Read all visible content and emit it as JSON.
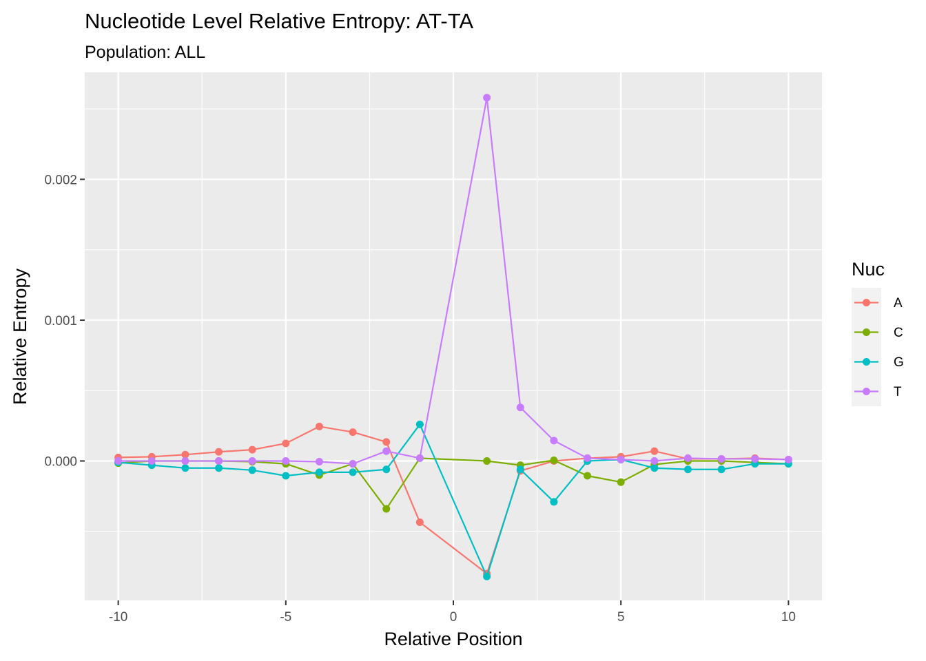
{
  "chart_data": {
    "type": "line",
    "title": "Nucleotide Level Relative Entropy: AT-TA",
    "subtitle": "Population: ALL",
    "xlabel": "Relative Position",
    "ylabel": "Relative Entropy",
    "xlim": [
      -11,
      11
    ],
    "ylim": [
      -0.00099,
      0.00276
    ],
    "x_ticks": [
      -10,
      -5,
      0,
      5,
      10
    ],
    "x_tick_labels": [
      "-10",
      "-5",
      "0",
      "5",
      "10"
    ],
    "x_minor_ticks": [
      -7.5,
      -2.5,
      2.5,
      7.5
    ],
    "y_ticks": [
      0,
      0.001,
      0.002
    ],
    "y_tick_labels": [
      "0.000",
      "0.001",
      "0.002"
    ],
    "y_minor_ticks": [
      -0.0005,
      0.0005,
      0.0015,
      0.0025
    ],
    "grid": true,
    "legend": {
      "title": "Nuc",
      "position": "right"
    },
    "x": [
      -10,
      -9,
      -8,
      -7,
      -6,
      -5,
      -4,
      -3,
      -2,
      -1,
      1,
      2,
      3,
      4,
      5,
      6,
      7,
      8,
      9,
      10
    ],
    "series": [
      {
        "name": "A",
        "color": "#F8766D",
        "values": [
          2.5e-05,
          3e-05,
          4.5e-05,
          6.5e-05,
          8e-05,
          0.000125,
          0.000245,
          0.000205,
          0.000135,
          -0.000435,
          -0.0008,
          -7e-05,
          0.0,
          2e-05,
          3e-05,
          7e-05,
          1.5e-05,
          1.5e-05,
          2e-05,
          1e-05
        ]
      },
      {
        "name": "C",
        "color": "#7CAE00",
        "values": [
          -1.5e-05,
          0.0,
          0.0,
          0.0,
          -5e-06,
          -2e-05,
          -0.0001,
          -2e-05,
          -0.00034,
          2e-05,
          0.0,
          -3e-05,
          5e-06,
          -0.000105,
          -0.00015,
          -2.5e-05,
          0.0,
          0.0,
          -1e-05,
          -2e-05
        ]
      },
      {
        "name": "G",
        "color": "#00BFC4",
        "values": [
          -1e-05,
          -3e-05,
          -5e-05,
          -5e-05,
          -6.5e-05,
          -0.000105,
          -8e-05,
          -8e-05,
          -6e-05,
          0.00026,
          -0.00082,
          -6e-05,
          -0.00029,
          0.0,
          1e-05,
          -5e-05,
          -6e-05,
          -6e-05,
          -2e-05,
          -2e-05
        ]
      },
      {
        "name": "T",
        "color": "#C77CFF",
        "values": [
          0.0,
          0.0,
          0.0,
          0.0,
          0.0,
          0.0,
          -5e-06,
          -2e-05,
          7e-05,
          2e-05,
          0.00258,
          0.00038,
          0.000145,
          2e-05,
          1e-05,
          0.0,
          2e-05,
          1.5e-05,
          1.5e-05,
          1e-05
        ]
      }
    ]
  }
}
